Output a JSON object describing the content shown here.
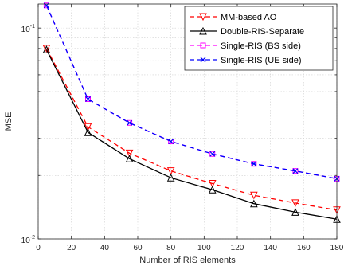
{
  "chart_data": {
    "type": "line",
    "title": "",
    "xlabel": "Number of RIS elements",
    "ylabel": "MSE",
    "xlim": [
      0,
      180
    ],
    "ylim": [
      0.01,
      0.13
    ],
    "yscale": "log",
    "grid": true,
    "legend_position": "top-right",
    "x_ticks": [
      0,
      20,
      40,
      60,
      80,
      100,
      120,
      140,
      160,
      180
    ],
    "x_tick_labels": [
      "0",
      "20",
      "40",
      "60",
      "80",
      "100",
      "120",
      "140",
      "160",
      "180"
    ],
    "y_tick_labels": [
      {
        "value": 0.1,
        "base": "10",
        "exp": "-1"
      },
      {
        "value": 0.01,
        "base": "10",
        "exp": "-2"
      }
    ],
    "x": [
      5,
      30,
      55,
      80,
      105,
      130,
      155,
      180
    ],
    "series": [
      {
        "name": "MM-based AO",
        "color": "#ff0000",
        "dash": "dashed",
        "marker": "triangle-down",
        "values": [
          0.08,
          0.034,
          0.0255,
          0.021,
          0.0183,
          0.0161,
          0.0148,
          0.0137
        ]
      },
      {
        "name": "Double-RIS-Separate",
        "color": "#000000",
        "dash": "solid",
        "marker": "triangle-up",
        "values": [
          0.079,
          0.032,
          0.024,
          0.0195,
          0.0171,
          0.0147,
          0.0134,
          0.0124
        ]
      },
      {
        "name": "Single-RIS (BS side)",
        "color": "#ff00ff",
        "dash": "dashed",
        "marker": "square",
        "values": [
          0.128,
          0.046,
          0.0355,
          0.029,
          0.0253,
          0.0227,
          0.021,
          0.0193
        ]
      },
      {
        "name": "Single-RIS (UE side)",
        "color": "#0000ff",
        "dash": "dashed",
        "marker": "x",
        "values": [
          0.128,
          0.046,
          0.0355,
          0.029,
          0.0253,
          0.0227,
          0.021,
          0.0193
        ]
      }
    ]
  }
}
